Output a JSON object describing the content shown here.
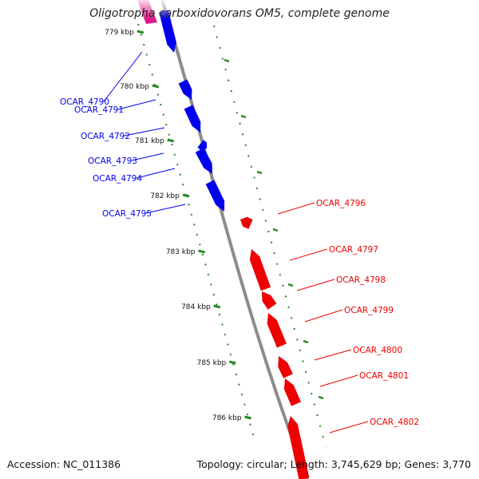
{
  "title": "Oligotropha carboxidovorans OM5, complete genome",
  "footer": {
    "accession": "Accession: NC_011386",
    "topology": "Topology: circular; Length: 3,745,629 bp; Genes: 3,770"
  },
  "colors": {
    "forward_strand": "#0000ee",
    "reverse_strand": "#ee0000",
    "rna_feature": "#e0188a",
    "backbone": "#909090",
    "tick_marks": "#228b22"
  },
  "ticks": [
    {
      "label": "779 kbp",
      "kbp": 779
    },
    {
      "label": "780 kbp",
      "kbp": 780
    },
    {
      "label": "781 kbp",
      "kbp": 781
    },
    {
      "label": "782 kbp",
      "kbp": 782
    },
    {
      "label": "783 kbp",
      "kbp": 783
    },
    {
      "label": "784 kbp",
      "kbp": 784
    },
    {
      "label": "785 kbp",
      "kbp": 785
    },
    {
      "label": "786 kbp",
      "kbp": 786
    }
  ],
  "genes_forward": [
    {
      "label": "OCAR_4790"
    },
    {
      "label": "OCAR_4791"
    },
    {
      "label": "OCAR_4792"
    },
    {
      "label": "OCAR_4793"
    },
    {
      "label": "OCAR_4794"
    },
    {
      "label": "OCAR_4795"
    }
  ],
  "genes_reverse": [
    {
      "label": "OCAR_4796"
    },
    {
      "label": "OCAR_4797"
    },
    {
      "label": "OCAR_4798"
    },
    {
      "label": "OCAR_4799"
    },
    {
      "label": "OCAR_4800"
    },
    {
      "label": "OCAR_4801"
    },
    {
      "label": "OCAR_4802"
    }
  ]
}
